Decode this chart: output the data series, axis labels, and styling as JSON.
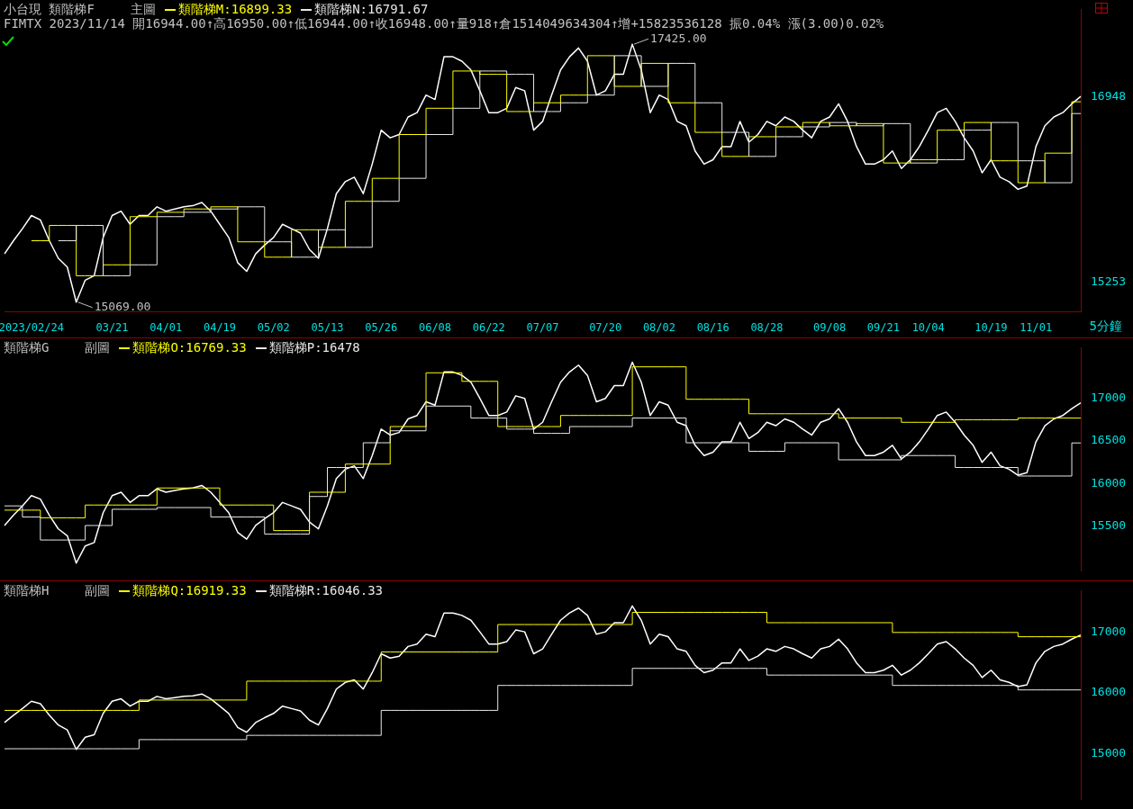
{
  "chart_data": [
    {
      "type": "line",
      "title": "小台現 類階梯F",
      "legend_title": "主圖",
      "subtitle": "FIMTX 2023/11/14 開16944.00↑高16950.00↑低16944.00↑收16948.00↑量918↑倉1514049634304↑增+15823536128 振0.04% 漲(3.00)0.02%",
      "legend": "top left",
      "categories": [
        null,
        null,
        null,
        "2023/02/24",
        null,
        null,
        null,
        null,
        null,
        null,
        null,
        null,
        "03/21",
        null,
        null,
        null,
        null,
        null,
        "04/01",
        null,
        null,
        null,
        null,
        null,
        "04/19",
        null,
        null,
        null,
        null,
        null,
        "05/02",
        null,
        null,
        null,
        null,
        null,
        "05/13",
        null,
        null,
        null,
        null,
        null,
        "05/26",
        null,
        null,
        null,
        null,
        null,
        "06/08",
        null,
        null,
        null,
        null,
        null,
        "06/22",
        null,
        null,
        null,
        null,
        null,
        "07/07",
        null,
        null,
        null,
        null,
        null,
        null,
        "07/20",
        null,
        null,
        null,
        null,
        null,
        "08/02",
        null,
        null,
        null,
        null,
        null,
        "08/16",
        null,
        null,
        null,
        null,
        null,
        "08/28",
        null,
        null,
        null,
        null,
        null,
        null,
        "09/08",
        null,
        null,
        null,
        null,
        null,
        "09/21",
        null,
        null,
        null,
        null,
        "10/04",
        null,
        null,
        null,
        null,
        null,
        null,
        "10/19",
        null,
        null,
        null,
        null,
        "11/01",
        null,
        null,
        null,
        null,
        null
      ],
      "ylim": [
        14980,
        17740
      ],
      "yticks": [
        15253,
        16948
      ],
      "annotations": [
        "17425.00",
        "15069.00",
        "5分鐘"
      ],
      "series": [
        {
          "color": "#ffffff",
          "values": [
            15510,
            15630,
            15740,
            15860,
            15820,
            15630,
            15470,
            15390,
            15069,
            15270,
            15310,
            15660,
            15860,
            15900,
            15780,
            15860,
            15860,
            15940,
            15900,
            15920,
            15940,
            15950,
            15980,
            15900,
            15780,
            15660,
            15430,
            15350,
            15510,
            15590,
            15660,
            15780,
            15740,
            15700,
            15550,
            15470,
            15740,
            16060,
            16170,
            16210,
            16060,
            16330,
            16640,
            16570,
            16600,
            16760,
            16800,
            16960,
            16920,
            17310,
            17310,
            17270,
            17190,
            17000,
            16800,
            16800,
            16840,
            17030,
            17000,
            16640,
            16720,
            16960,
            17190,
            17310,
            17390,
            17270,
            16960,
            17000,
            17150,
            17150,
            17425,
            17190,
            16800,
            16960,
            16920,
            16720,
            16680,
            16450,
            16330,
            16370,
            16490,
            16490,
            16720,
            16530,
            16600,
            16720,
            16680,
            16760,
            16720,
            16640,
            16570,
            16720,
            16760,
            16880,
            16720,
            16490,
            16330,
            16330,
            16370,
            16450,
            16290,
            16370,
            16490,
            16640,
            16800,
            16840,
            16720,
            16570,
            16450,
            16250,
            16370,
            16210,
            16170,
            16100,
            16130,
            16490,
            16680,
            16760,
            16800,
            16880,
            16948
          ]
        },
        {
          "type": "step",
          "name": "類階梯M:16899.33",
          "color": "#ffff00",
          "values": [
            null,
            null,
            null,
            15630,
            15630,
            15630,
            15770,
            15770,
            15770,
            15310,
            15310,
            15310,
            15410,
            15410,
            15410,
            15850,
            15850,
            15850,
            15890,
            15890,
            15890,
            15920,
            15920,
            15920,
            15940,
            15940,
            15940,
            15620,
            15620,
            15620,
            15480,
            15480,
            15480,
            15730,
            15730,
            15730,
            15570,
            15570,
            15570,
            15990,
            15990,
            15990,
            16200,
            16200,
            16200,
            16600,
            16600,
            16600,
            16840,
            16840,
            16840,
            17180,
            17180,
            17180,
            17150,
            17150,
            17150,
            16810,
            16810,
            16810,
            16890,
            16890,
            16890,
            16960,
            16960,
            16960,
            17320,
            17320,
            17320,
            17040,
            17040,
            17040,
            17250,
            17250,
            17250,
            16890,
            16890,
            16890,
            16620,
            16620,
            16620,
            16400,
            16400,
            16400,
            16580,
            16580,
            16580,
            16670,
            16670,
            16670,
            16710,
            16710,
            16710,
            16680,
            16680,
            16680,
            16700,
            16700,
            16700,
            16340,
            16340,
            16340,
            16370,
            16370,
            16370,
            16640,
            16640,
            16640,
            16710,
            16710,
            16710,
            16360,
            16360,
            16360,
            16160,
            16160,
            16160,
            16430,
            16430,
            16430,
            16899.33
          ]
        },
        {
          "type": "step",
          "name": "類階梯N:16791.67",
          "color": "#e8e8e8",
          "values": [
            null,
            null,
            null,
            null,
            null,
            null,
            15630,
            15630,
            15630,
            15770,
            15770,
            15770,
            15310,
            15310,
            15310,
            15410,
            15410,
            15410,
            15850,
            15850,
            15850,
            15890,
            15890,
            15890,
            15920,
            15920,
            15920,
            15940,
            15940,
            15940,
            15620,
            15620,
            15620,
            15480,
            15480,
            15480,
            15730,
            15730,
            15730,
            15570,
            15570,
            15570,
            15990,
            15990,
            15990,
            16200,
            16200,
            16200,
            16600,
            16600,
            16600,
            16840,
            16840,
            16840,
            17180,
            17180,
            17180,
            17150,
            17150,
            17150,
            16810,
            16810,
            16810,
            16890,
            16890,
            16890,
            16960,
            16960,
            16960,
            17320,
            17320,
            17320,
            17040,
            17040,
            17040,
            17250,
            17250,
            17250,
            16890,
            16890,
            16890,
            16620,
            16620,
            16620,
            16400,
            16400,
            16400,
            16580,
            16580,
            16580,
            16670,
            16670,
            16670,
            16710,
            16710,
            16710,
            16680,
            16680,
            16680,
            16700,
            16700,
            16700,
            16340,
            16340,
            16340,
            16370,
            16370,
            16370,
            16640,
            16640,
            16640,
            16710,
            16710,
            16710,
            16360,
            16360,
            16360,
            16160,
            16160,
            16160,
            16791.67
          ]
        }
      ]
    },
    {
      "type": "line",
      "title": "類階梯G",
      "legend_title": "副圖",
      "legend": "top left",
      "tick_labels": "y",
      "categories": [
        null,
        null,
        null,
        null,
        null,
        null,
        null,
        null,
        null,
        null,
        null,
        null,
        null,
        null,
        null,
        null,
        null,
        null,
        null,
        null,
        null,
        null,
        null,
        null,
        null,
        null,
        null,
        null,
        null,
        null,
        null,
        null,
        null,
        null,
        null,
        null,
        null,
        null,
        null,
        null,
        null,
        null,
        null,
        null,
        null,
        null,
        null,
        null,
        null,
        null,
        null,
        null,
        null,
        null,
        null,
        null,
        null,
        null,
        null,
        null,
        null,
        null,
        null,
        null,
        null,
        null,
        null,
        null,
        null,
        null,
        null,
        null,
        null,
        null,
        null,
        null,
        null,
        null,
        null,
        null,
        null,
        null,
        null,
        null,
        null,
        null,
        null,
        null,
        null,
        null,
        null,
        null,
        null,
        null,
        null,
        null,
        null,
        null,
        null,
        null,
        null,
        null,
        null,
        null,
        null,
        null,
        null,
        null,
        null,
        null,
        null,
        null,
        null,
        null,
        null,
        null,
        null,
        null,
        null,
        null,
        null
      ],
      "ylim": [
        14980,
        17590
      ],
      "yticks": [
        15500,
        16000,
        16500,
        17000
      ],
      "series": [
        {
          "color": "#ffffff",
          "values": [
            15510,
            15630,
            15740,
            15860,
            15820,
            15630,
            15470,
            15390,
            15069,
            15270,
            15310,
            15660,
            15860,
            15900,
            15780,
            15860,
            15860,
            15940,
            15900,
            15920,
            15940,
            15950,
            15980,
            15900,
            15780,
            15660,
            15430,
            15350,
            15510,
            15590,
            15660,
            15780,
            15740,
            15700,
            15550,
            15470,
            15740,
            16060,
            16170,
            16210,
            16060,
            16330,
            16640,
            16570,
            16600,
            16760,
            16800,
            16960,
            16920,
            17310,
            17310,
            17270,
            17190,
            17000,
            16800,
            16800,
            16840,
            17030,
            17000,
            16640,
            16720,
            16960,
            17190,
            17310,
            17390,
            17270,
            16960,
            17000,
            17150,
            17150,
            17425,
            17190,
            16800,
            16960,
            16920,
            16720,
            16680,
            16450,
            16330,
            16370,
            16490,
            16490,
            16720,
            16530,
            16600,
            16720,
            16680,
            16760,
            16720,
            16640,
            16570,
            16720,
            16760,
            16880,
            16720,
            16490,
            16330,
            16330,
            16370,
            16450,
            16290,
            16370,
            16490,
            16640,
            16800,
            16840,
            16720,
            16570,
            16450,
            16250,
            16370,
            16210,
            16170,
            16100,
            16130,
            16490,
            16680,
            16760,
            16800,
            16880,
            16948
          ]
        },
        {
          "type": "step",
          "name": "類階梯O:16769.33",
          "color": "#ffff00",
          "values": [
            15690,
            15690,
            15690,
            15690,
            15690,
            15600,
            15600,
            15600,
            15600,
            15600,
            15750,
            15750,
            15750,
            15750,
            15750,
            15750,
            15750,
            15750,
            15950,
            15950,
            15950,
            15950,
            15950,
            15950,
            15950,
            15750,
            15750,
            15750,
            15750,
            15750,
            15750,
            15450,
            15450,
            15450,
            15450,
            15900,
            15900,
            15900,
            15900,
            16230,
            16230,
            16230,
            16230,
            16230,
            16670,
            16670,
            16670,
            16670,
            17300,
            17300,
            17300,
            17300,
            17200,
            17200,
            17200,
            17200,
            16670,
            16670,
            16670,
            16670,
            16670,
            16670,
            16670,
            16800,
            16800,
            16800,
            16800,
            16800,
            16800,
            16800,
            16800,
            17370,
            17370,
            17370,
            17370,
            17370,
            17370,
            16990,
            16990,
            16990,
            16990,
            16990,
            16990,
            16990,
            16820,
            16820,
            16820,
            16820,
            16820,
            16820,
            16820,
            16820,
            16820,
            16820,
            16770,
            16770,
            16770,
            16770,
            16770,
            16770,
            16770,
            16720,
            16720,
            16720,
            16720,
            16720,
            16720,
            16750,
            16750,
            16750,
            16750,
            16750,
            16750,
            16750,
            16770,
            16770,
            16770,
            16770,
            16770,
            16770,
            16769.33
          ]
        },
        {
          "type": "step",
          "name": "類階梯P:16478",
          "color": "#e8e8e8",
          "values": [
            15740,
            15740,
            15740,
            15610,
            15610,
            15340,
            15340,
            15340,
            15340,
            15340,
            15510,
            15510,
            15510,
            15700,
            15700,
            15700,
            15700,
            15700,
            15720,
            15720,
            15720,
            15720,
            15720,
            15720,
            15610,
            15610,
            15610,
            15610,
            15610,
            15610,
            15410,
            15410,
            15410,
            15410,
            15410,
            15850,
            15850,
            16190,
            16190,
            16190,
            16190,
            16480,
            16480,
            16480,
            16620,
            16620,
            16620,
            16620,
            16910,
            16910,
            16910,
            16910,
            16910,
            16770,
            16770,
            16770,
            16770,
            16640,
            16640,
            16640,
            16590,
            16590,
            16590,
            16590,
            16670,
            16670,
            16670,
            16670,
            16670,
            16670,
            16670,
            16770,
            16770,
            16770,
            16770,
            16770,
            16770,
            16480,
            16480,
            16480,
            16480,
            16480,
            16480,
            16480,
            16380,
            16380,
            16380,
            16380,
            16480,
            16480,
            16480,
            16480,
            16480,
            16480,
            16280,
            16280,
            16280,
            16280,
            16280,
            16280,
            16280,
            16330,
            16330,
            16330,
            16330,
            16330,
            16330,
            16190,
            16190,
            16190,
            16190,
            16190,
            16190,
            16190,
            16090,
            16090,
            16090,
            16090,
            16090,
            16090,
            16478
          ]
        }
      ]
    },
    {
      "type": "line",
      "title": "類階梯H",
      "legend_title": "副圖",
      "legend": "top left",
      "tick_labels": "y",
      "categories": [
        null,
        null,
        null,
        null,
        null,
        null,
        null,
        null,
        null,
        null,
        null,
        null,
        null,
        null,
        null,
        null,
        null,
        null,
        null,
        null,
        null,
        null,
        null,
        null,
        null,
        null,
        null,
        null,
        null,
        null,
        null,
        null,
        null,
        null,
        null,
        null,
        null,
        null,
        null,
        null,
        null,
        null,
        null,
        null,
        null,
        null,
        null,
        null,
        null,
        null,
        null,
        null,
        null,
        null,
        null,
        null,
        null,
        null,
        null,
        null,
        null,
        null,
        null,
        null,
        null,
        null,
        null,
        null,
        null,
        null,
        null,
        null,
        null,
        null,
        null,
        null,
        null,
        null,
        null,
        null,
        null,
        null,
        null,
        null,
        null,
        null,
        null,
        null,
        null,
        null,
        null,
        null,
        null,
        null,
        null,
        null,
        null,
        null,
        null,
        null,
        null,
        null,
        null,
        null,
        null,
        null,
        null,
        null,
        null,
        null,
        null,
        null,
        null,
        null,
        null,
        null,
        null,
        null,
        null,
        null,
        null
      ],
      "ylim": [
        14250,
        17670
      ],
      "yticks": [
        15000,
        16000,
        17000
      ],
      "series": [
        {
          "color": "#ffffff",
          "values": [
            15510,
            15630,
            15740,
            15860,
            15820,
            15630,
            15470,
            15390,
            15069,
            15270,
            15310,
            15660,
            15860,
            15900,
            15780,
            15860,
            15860,
            15940,
            15900,
            15920,
            15940,
            15950,
            15980,
            15900,
            15780,
            15660,
            15430,
            15350,
            15510,
            15590,
            15660,
            15780,
            15740,
            15700,
            15550,
            15470,
            15740,
            16060,
            16170,
            16210,
            16060,
            16330,
            16640,
            16570,
            16600,
            16760,
            16800,
            16960,
            16920,
            17310,
            17310,
            17270,
            17190,
            17000,
            16800,
            16800,
            16840,
            17030,
            17000,
            16640,
            16720,
            16960,
            17190,
            17310,
            17390,
            17270,
            16960,
            17000,
            17150,
            17150,
            17425,
            17190,
            16800,
            16960,
            16920,
            16720,
            16680,
            16450,
            16330,
            16370,
            16490,
            16490,
            16720,
            16530,
            16600,
            16720,
            16680,
            16760,
            16720,
            16640,
            16570,
            16720,
            16760,
            16880,
            16720,
            16490,
            16330,
            16330,
            16370,
            16450,
            16290,
            16370,
            16490,
            16640,
            16800,
            16840,
            16720,
            16570,
            16450,
            16250,
            16370,
            16210,
            16170,
            16100,
            16130,
            16490,
            16680,
            16760,
            16800,
            16880,
            16948
          ]
        },
        {
          "type": "step",
          "name": "類階梯Q:16919.33",
          "color": "#ffff00",
          "values": [
            15710,
            15710,
            15710,
            15710,
            15710,
            15710,
            15710,
            15710,
            15710,
            15710,
            15710,
            15710,
            15710,
            15710,
            15710,
            15710,
            15880,
            15880,
            15880,
            15880,
            15880,
            15880,
            15880,
            15880,
            15880,
            15880,
            15880,
            15880,
            16190,
            16190,
            16190,
            16190,
            16190,
            16190,
            16190,
            16190,
            16190,
            16190,
            16190,
            16190,
            16190,
            16190,
            16190,
            16670,
            16670,
            16670,
            16670,
            16670,
            16670,
            16670,
            16670,
            16670,
            16670,
            16670,
            16670,
            16670,
            17120,
            17120,
            17120,
            17120,
            17120,
            17120,
            17120,
            17120,
            17120,
            17120,
            17120,
            17120,
            17120,
            17120,
            17120,
            17320,
            17320,
            17320,
            17320,
            17320,
            17320,
            17320,
            17320,
            17320,
            17320,
            17320,
            17320,
            17320,
            17320,
            17320,
            17150,
            17150,
            17150,
            17150,
            17150,
            17150,
            17150,
            17150,
            17150,
            17150,
            17150,
            17150,
            17150,
            17150,
            16990,
            16990,
            16990,
            16990,
            16990,
            16990,
            16990,
            16990,
            16990,
            16990,
            16990,
            16990,
            16990,
            16990,
            16919.33,
            16919.33,
            16919.33,
            16919.33,
            16919.33,
            16919.33,
            16919.33
          ]
        },
        {
          "type": "step",
          "name": "類階梯R:16046.33",
          "color": "#e8e8e8",
          "values": [
            15080,
            15080,
            15080,
            15080,
            15080,
            15080,
            15080,
            15080,
            15080,
            15080,
            15080,
            15080,
            15080,
            15080,
            15080,
            15080,
            15230,
            15230,
            15230,
            15230,
            15230,
            15230,
            15230,
            15230,
            15230,
            15230,
            15230,
            15230,
            15300,
            15300,
            15300,
            15300,
            15300,
            15300,
            15300,
            15300,
            15300,
            15300,
            15300,
            15300,
            15300,
            15300,
            15300,
            15710,
            15710,
            15710,
            15710,
            15710,
            15710,
            15710,
            15710,
            15710,
            15710,
            15710,
            15710,
            15710,
            16120,
            16120,
            16120,
            16120,
            16120,
            16120,
            16120,
            16120,
            16120,
            16120,
            16120,
            16120,
            16120,
            16120,
            16120,
            16400,
            16400,
            16400,
            16400,
            16400,
            16400,
            16400,
            16400,
            16400,
            16400,
            16400,
            16400,
            16400,
            16400,
            16400,
            16290,
            16290,
            16290,
            16290,
            16290,
            16290,
            16290,
            16290,
            16290,
            16290,
            16290,
            16290,
            16290,
            16290,
            16120,
            16120,
            16120,
            16120,
            16120,
            16120,
            16120,
            16120,
            16120,
            16120,
            16120,
            16120,
            16120,
            16120,
            16046.33,
            16046.33,
            16046.33,
            16046.33,
            16046.33,
            16046.33,
            16046.33
          ]
        }
      ]
    }
  ]
}
